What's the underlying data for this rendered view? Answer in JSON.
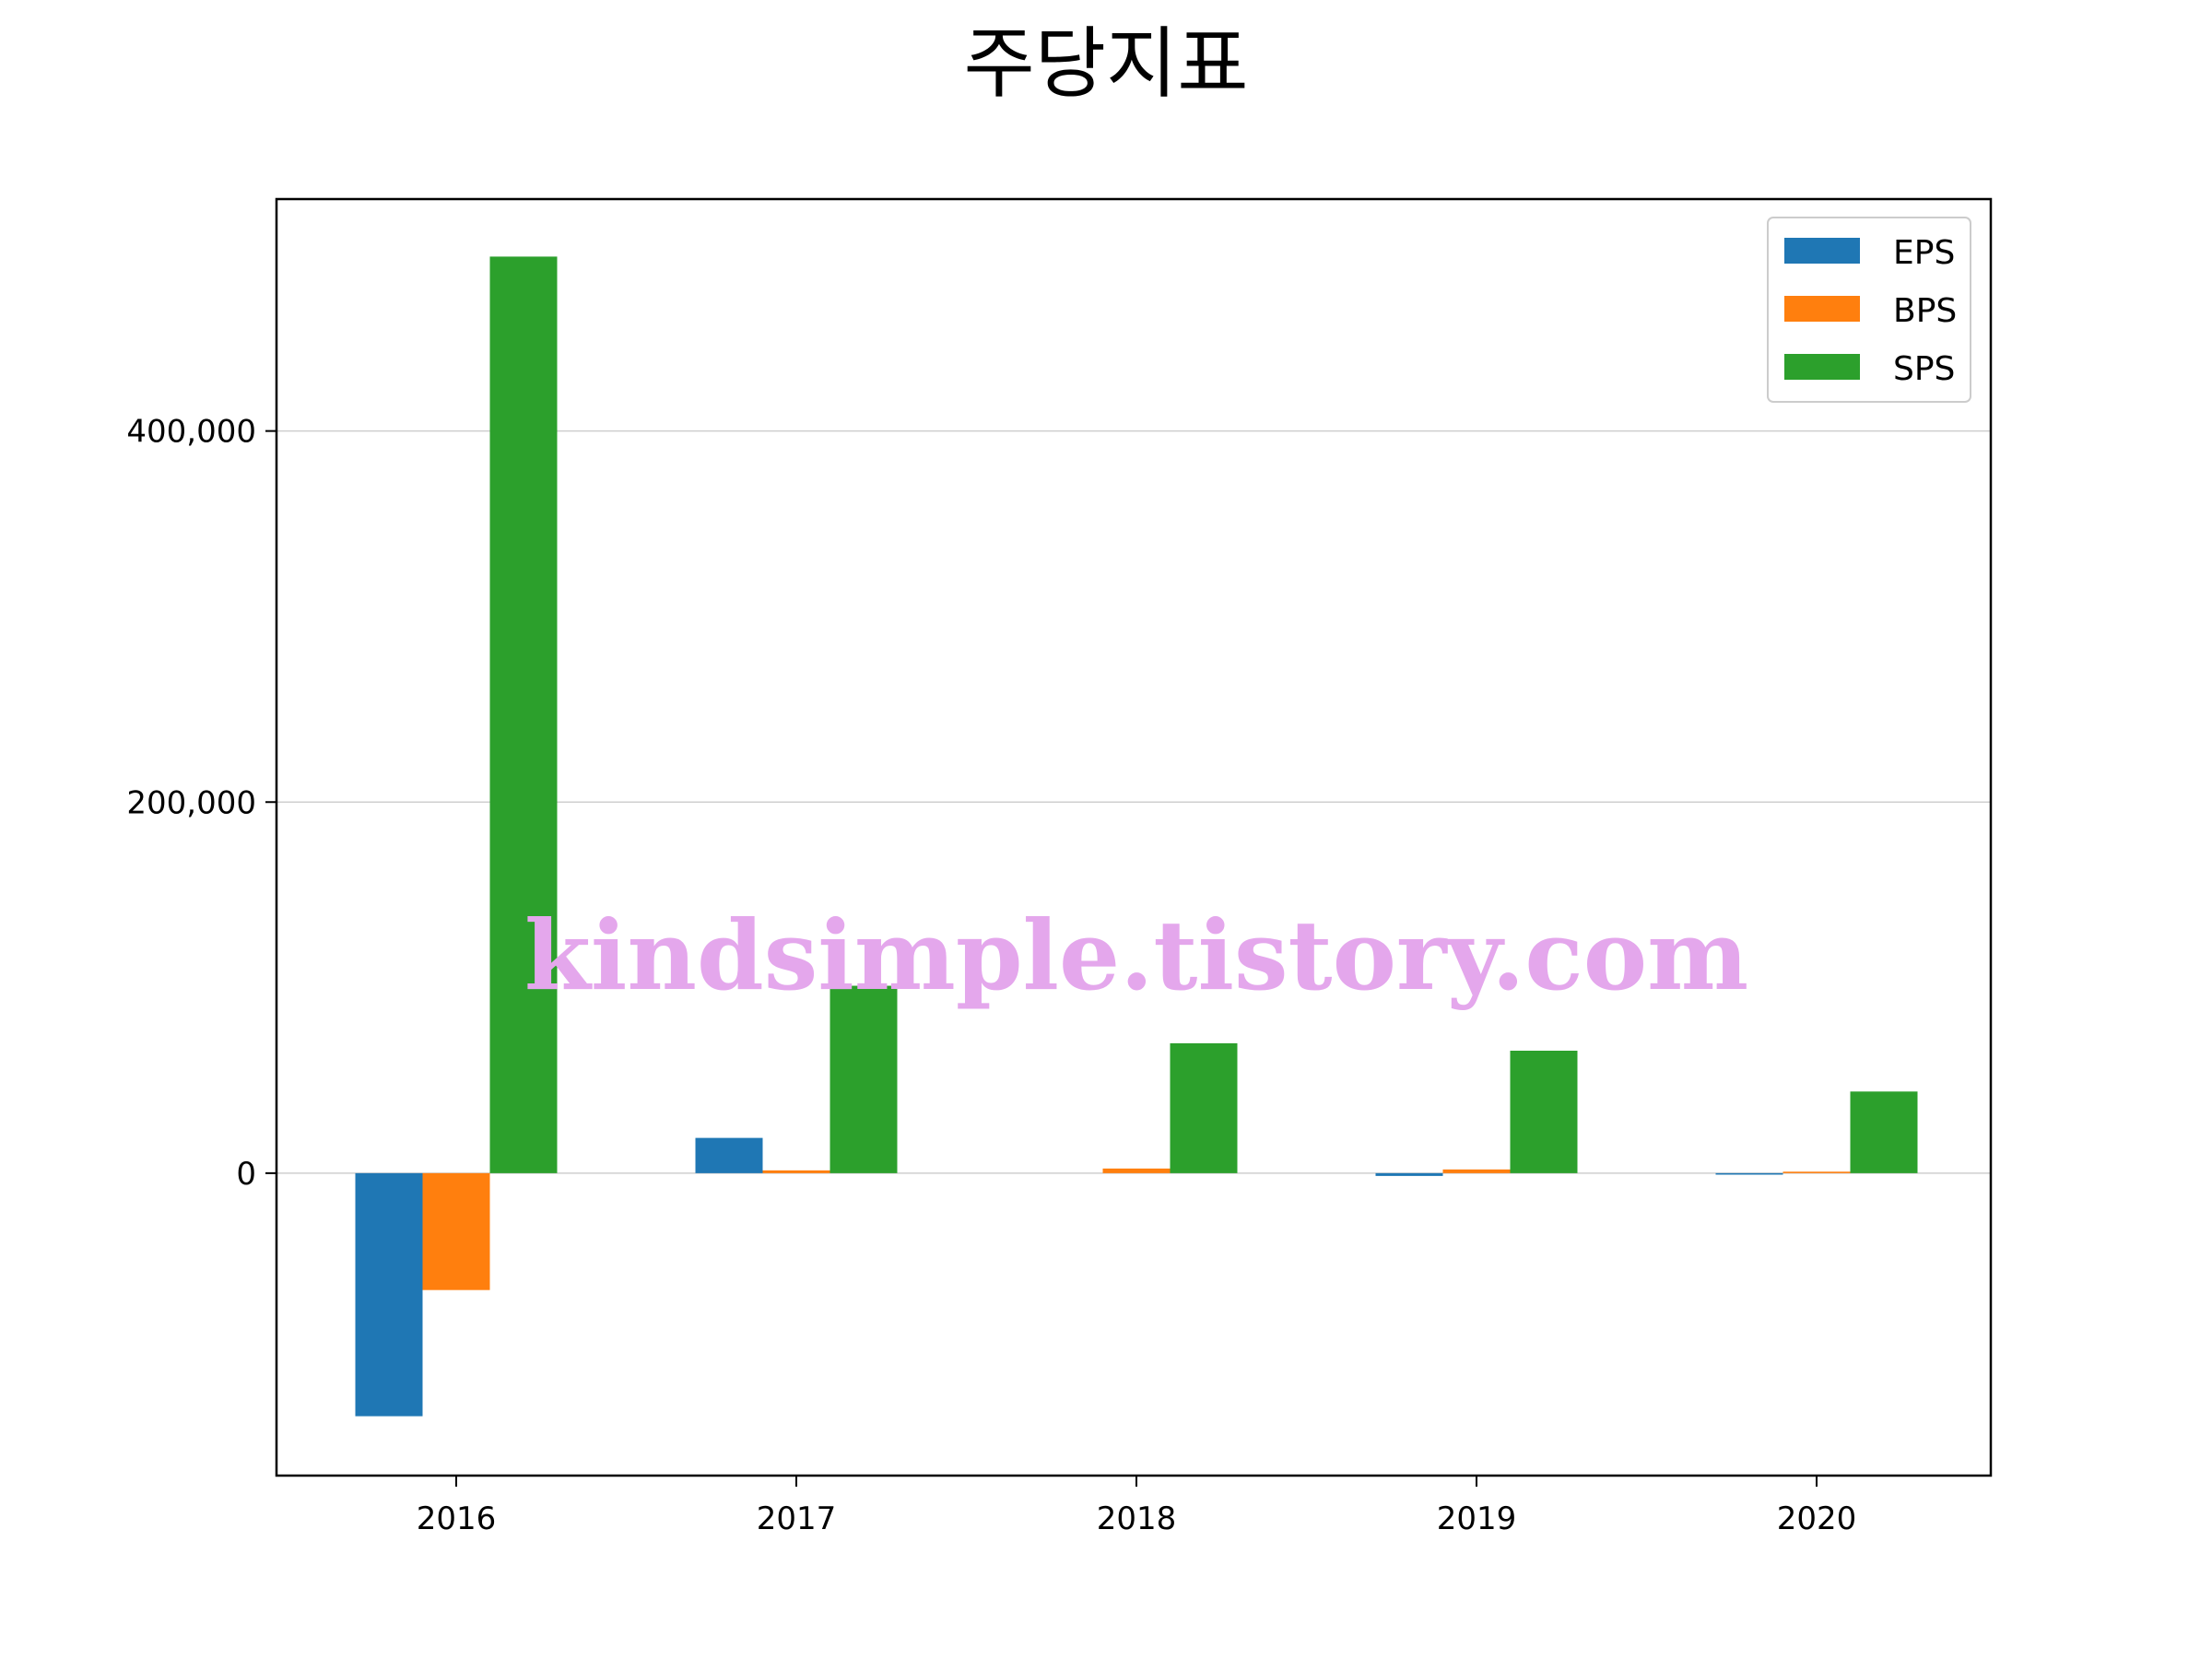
{
  "chart_data": {
    "type": "bar",
    "title": "주당지표",
    "categories": [
      "2016",
      "2017",
      "2018",
      "2019",
      "2020"
    ],
    "series": [
      {
        "name": "EPS",
        "color": "#1f77b4",
        "values": [
          -131000,
          19000,
          0,
          -1500,
          -800
        ]
      },
      {
        "name": "BPS",
        "color": "#ff7f0e",
        "values": [
          -63000,
          1500,
          2500,
          2000,
          800
        ]
      },
      {
        "name": "SPS",
        "color": "#2ca02c",
        "values": [
          494000,
          101000,
          70000,
          66000,
          44000
        ]
      }
    ],
    "ylim": [
      -163000,
      525000
    ],
    "yticks": [
      0,
      200000,
      400000
    ],
    "ytick_labels": [
      "0",
      "200,000",
      "400,000"
    ],
    "grid": "y",
    "legend_position": "top-right"
  },
  "watermark": {
    "text": "kindsimple.tistory.com",
    "color": "#e4a7ec"
  }
}
